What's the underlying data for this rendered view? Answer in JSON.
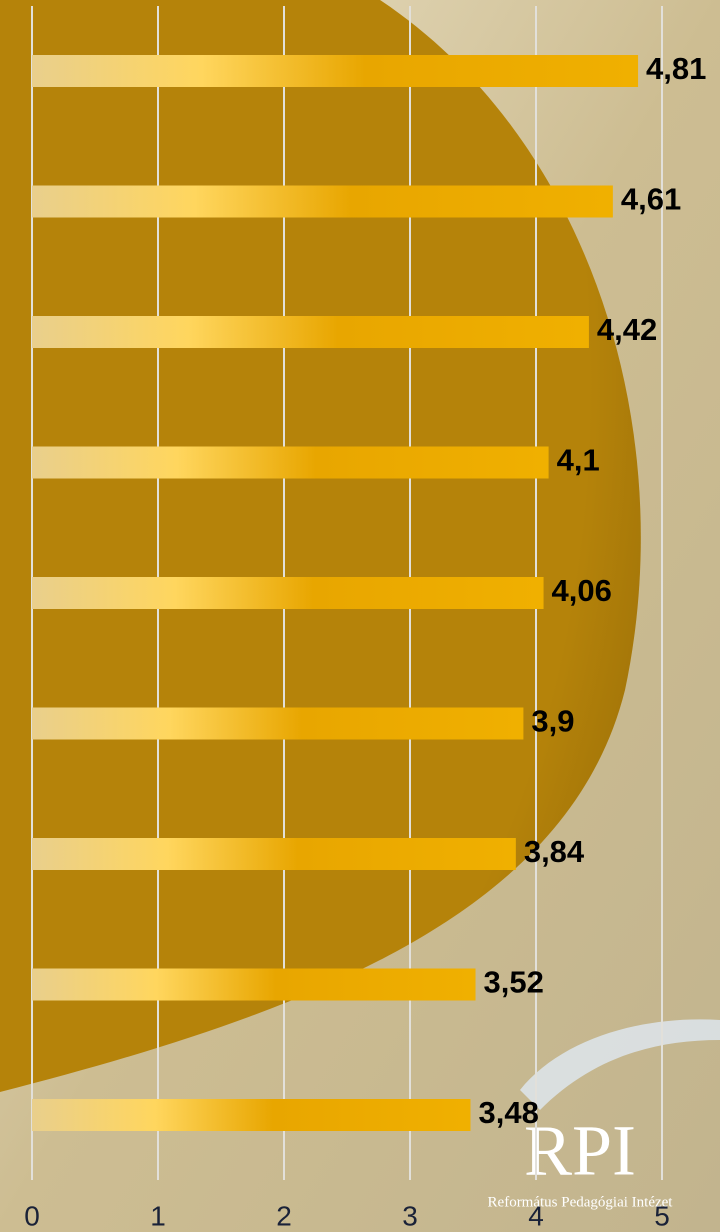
{
  "chart_data": {
    "type": "bar",
    "orientation": "horizontal",
    "categories": [
      null,
      null,
      null,
      null,
      null,
      null,
      null,
      null,
      null
    ],
    "values": [
      4.81,
      4.61,
      4.42,
      4.1,
      4.06,
      3.9,
      3.84,
      3.52,
      3.48
    ],
    "value_labels": [
      "4,81",
      "4,61",
      "4,42",
      "4,1",
      "4,06",
      "3,9",
      "3,84",
      "3,52",
      "3,48"
    ],
    "color": "#f0b000",
    "xlim": [
      0,
      5
    ],
    "xticks": [
      0,
      1,
      2,
      3,
      4,
      5
    ],
    "grid": true,
    "annotations": [
      "RPI",
      "Református Pedagógiai Intézet"
    ]
  }
}
